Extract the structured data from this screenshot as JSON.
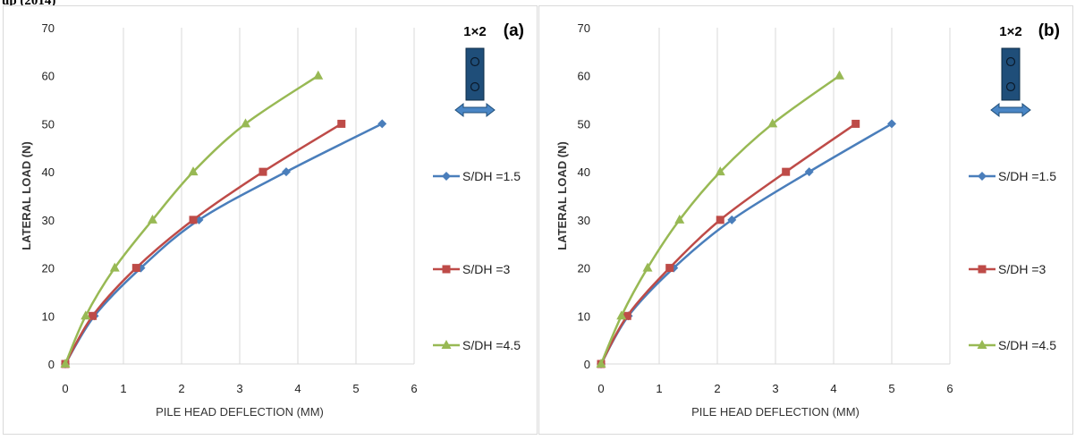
{
  "top_fragment": "up (2014)",
  "colors": {
    "blue": "#4a7ebb",
    "red": "#be4b48",
    "green": "#98b954",
    "pile": "#1f4e79",
    "arrow": "#4a86c5",
    "grid": "#d9d9d9"
  },
  "chart_data": [
    {
      "type": "line",
      "panel_label": "(a)",
      "arrangement_label": "1×2",
      "xlabel": "PILE HEAD DEFLECTION (MM)",
      "ylabel": "LATERAL LOAD (N)",
      "xlim": [
        0,
        6
      ],
      "ylim": [
        0,
        70
      ],
      "xticks": [
        "0",
        "1",
        "2",
        "3",
        "4",
        "5",
        "6"
      ],
      "yticks": [
        "0",
        "10",
        "20",
        "30",
        "40",
        "50",
        "60",
        "70"
      ],
      "grid": "vertical",
      "legend_position": "right",
      "series": [
        {
          "name": "S/DH =1.5",
          "marker": "diamond",
          "color": "#4a7ebb",
          "x": [
            0,
            0.5,
            1.3,
            2.3,
            3.8,
            5.45
          ],
          "y": [
            0,
            10,
            20,
            30,
            40,
            50
          ]
        },
        {
          "name": "S/DH =3",
          "marker": "square",
          "color": "#be4b48",
          "x": [
            0,
            0.47,
            1.22,
            2.2,
            3.4,
            4.75
          ],
          "y": [
            0,
            10,
            20,
            30,
            40,
            50
          ]
        },
        {
          "name": "S/DH =4.5",
          "marker": "triangle",
          "color": "#98b954",
          "x": [
            0,
            0.35,
            0.85,
            1.5,
            2.2,
            3.1,
            4.35
          ],
          "y": [
            0,
            10,
            20,
            30,
            40,
            50,
            60
          ]
        }
      ]
    },
    {
      "type": "line",
      "panel_label": "(b)",
      "arrangement_label": "1×2",
      "xlabel": "PILE HEAD DEFLECTION (MM)",
      "ylabel": "LATERAL LOAD (N)",
      "xlim": [
        0,
        6
      ],
      "ylim": [
        0,
        70
      ],
      "xticks": [
        "0",
        "1",
        "2",
        "3",
        "4",
        "5",
        "6"
      ],
      "yticks": [
        "0",
        "10",
        "20",
        "30",
        "40",
        "50",
        "60",
        "70"
      ],
      "grid": "vertical",
      "legend_position": "right",
      "series": [
        {
          "name": "S/DH =1.5",
          "marker": "diamond",
          "color": "#4a7ebb",
          "x": [
            0,
            0.47,
            1.25,
            2.25,
            3.58,
            5.0
          ],
          "y": [
            0,
            10,
            20,
            30,
            40,
            50
          ]
        },
        {
          "name": "S/DH =3",
          "marker": "square",
          "color": "#be4b48",
          "x": [
            0,
            0.45,
            1.18,
            2.05,
            3.18,
            4.38
          ],
          "y": [
            0,
            10,
            20,
            30,
            40,
            50
          ]
        },
        {
          "name": "S/DH =4.5",
          "marker": "triangle",
          "color": "#98b954",
          "x": [
            0,
            0.35,
            0.8,
            1.35,
            2.05,
            2.95,
            4.1
          ],
          "y": [
            0,
            10,
            20,
            30,
            40,
            50,
            60
          ]
        }
      ]
    }
  ]
}
